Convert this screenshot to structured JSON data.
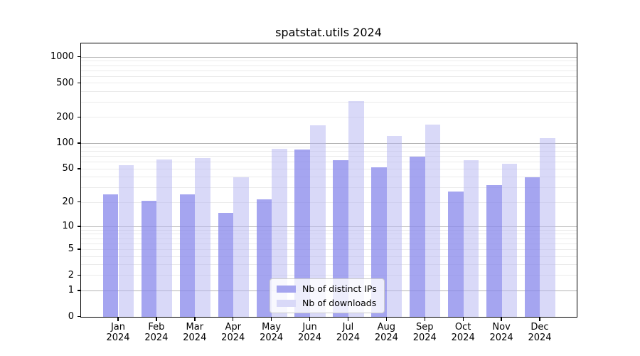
{
  "title": "spatstat.utils 2024",
  "colors": {
    "ips_bar_rgba": "rgba(135,135,235,0.75)",
    "downloads_bar_rgba": "rgba(179,179,241,0.5)",
    "ips_swatch": "#a5a5ef",
    "downloads_swatch": "#d9d9f8",
    "major_grid": "#b3b3b3",
    "minor_grid": "#ebebeb",
    "axis": "#000000",
    "legend_border": "#cccccc",
    "text": "#000000"
  },
  "legend": {
    "items": [
      {
        "label": "Nb of distinct IPs"
      },
      {
        "label": "Nb of downloads"
      }
    ]
  },
  "chart_data": {
    "type": "bar",
    "title": "spatstat.utils 2024",
    "months": [
      "Jan",
      "Feb",
      "Mar",
      "Apr",
      "May",
      "Jun",
      "Jul",
      "Aug",
      "Sep",
      "Oct",
      "Nov",
      "Dec"
    ],
    "year": "2024",
    "categories": [
      "Jan 2024",
      "Feb 2024",
      "Mar 2024",
      "Apr 2024",
      "May 2024",
      "Jun 2024",
      "Jul 2024",
      "Aug 2024",
      "Sep 2024",
      "Oct 2024",
      "Nov 2024",
      "Dec 2024"
    ],
    "series": [
      {
        "name": "Nb of distinct IPs",
        "values": [
          25,
          21,
          25,
          15,
          22,
          85,
          64,
          52,
          70,
          27,
          32,
          40
        ]
      },
      {
        "name": "Nb of downloads",
        "values": [
          56,
          65,
          67,
          40,
          87,
          161,
          310,
          122,
          164,
          64,
          58,
          116
        ]
      }
    ],
    "yscale": "log1p",
    "y_axis_ticks": [
      0,
      1,
      2,
      5,
      10,
      20,
      50,
      100,
      200,
      500,
      1000
    ],
    "y_major_gridlines": [
      1,
      10,
      100,
      1000
    ],
    "y_minor_gridlines": [
      2,
      3,
      4,
      5,
      6,
      7,
      8,
      9,
      20,
      30,
      40,
      50,
      60,
      70,
      80,
      90,
      200,
      300,
      400,
      500,
      600,
      700,
      800,
      900
    ],
    "ylim": [
      0,
      1440
    ],
    "xlabel": "",
    "ylabel": "",
    "grid": true,
    "legend_position": "lower center"
  }
}
